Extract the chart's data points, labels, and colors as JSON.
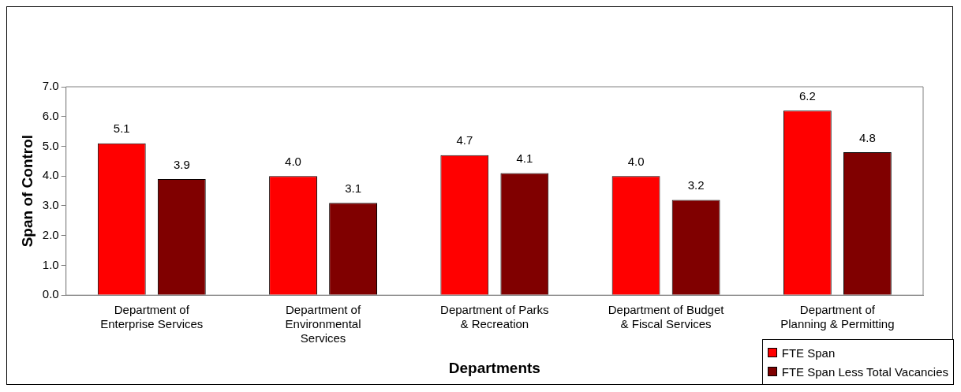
{
  "chart_data": {
    "type": "bar",
    "xlabel": "Departments",
    "ylabel": "Span of Control",
    "categories": [
      "Department of Enterprise Services",
      "Department of Environmental Services",
      "Department of Parks & Recreation",
      "Department of Budget & Fiscal Services",
      "Department of Planning & Permitting"
    ],
    "series": [
      {
        "name": "FTE Span",
        "color": "#ff0000",
        "values": [
          5.1,
          4.0,
          4.7,
          4.0,
          6.2
        ],
        "value_labels": [
          "5.1",
          "4.0",
          "4.7",
          "4.0",
          "6.2"
        ]
      },
      {
        "name": "FTE Span Less Total Vacancies",
        "color": "#800000",
        "values": [
          3.9,
          3.1,
          4.1,
          3.2,
          4.8
        ],
        "value_labels": [
          "3.9",
          "3.1",
          "4.1",
          "3.2",
          "4.8"
        ]
      }
    ],
    "ylim": [
      0,
      7
    ],
    "yticks": [
      {
        "value": 0,
        "label": "0.0"
      },
      {
        "value": 1,
        "label": "1.0"
      },
      {
        "value": 2,
        "label": "2.0"
      },
      {
        "value": 3,
        "label": "3.0"
      },
      {
        "value": 4,
        "label": "4.0"
      },
      {
        "value": 5,
        "label": "5.0"
      },
      {
        "value": 6,
        "label": "6.0"
      },
      {
        "value": 7,
        "label": "7.0"
      }
    ],
    "grid": false,
    "legend": "bottom right"
  }
}
